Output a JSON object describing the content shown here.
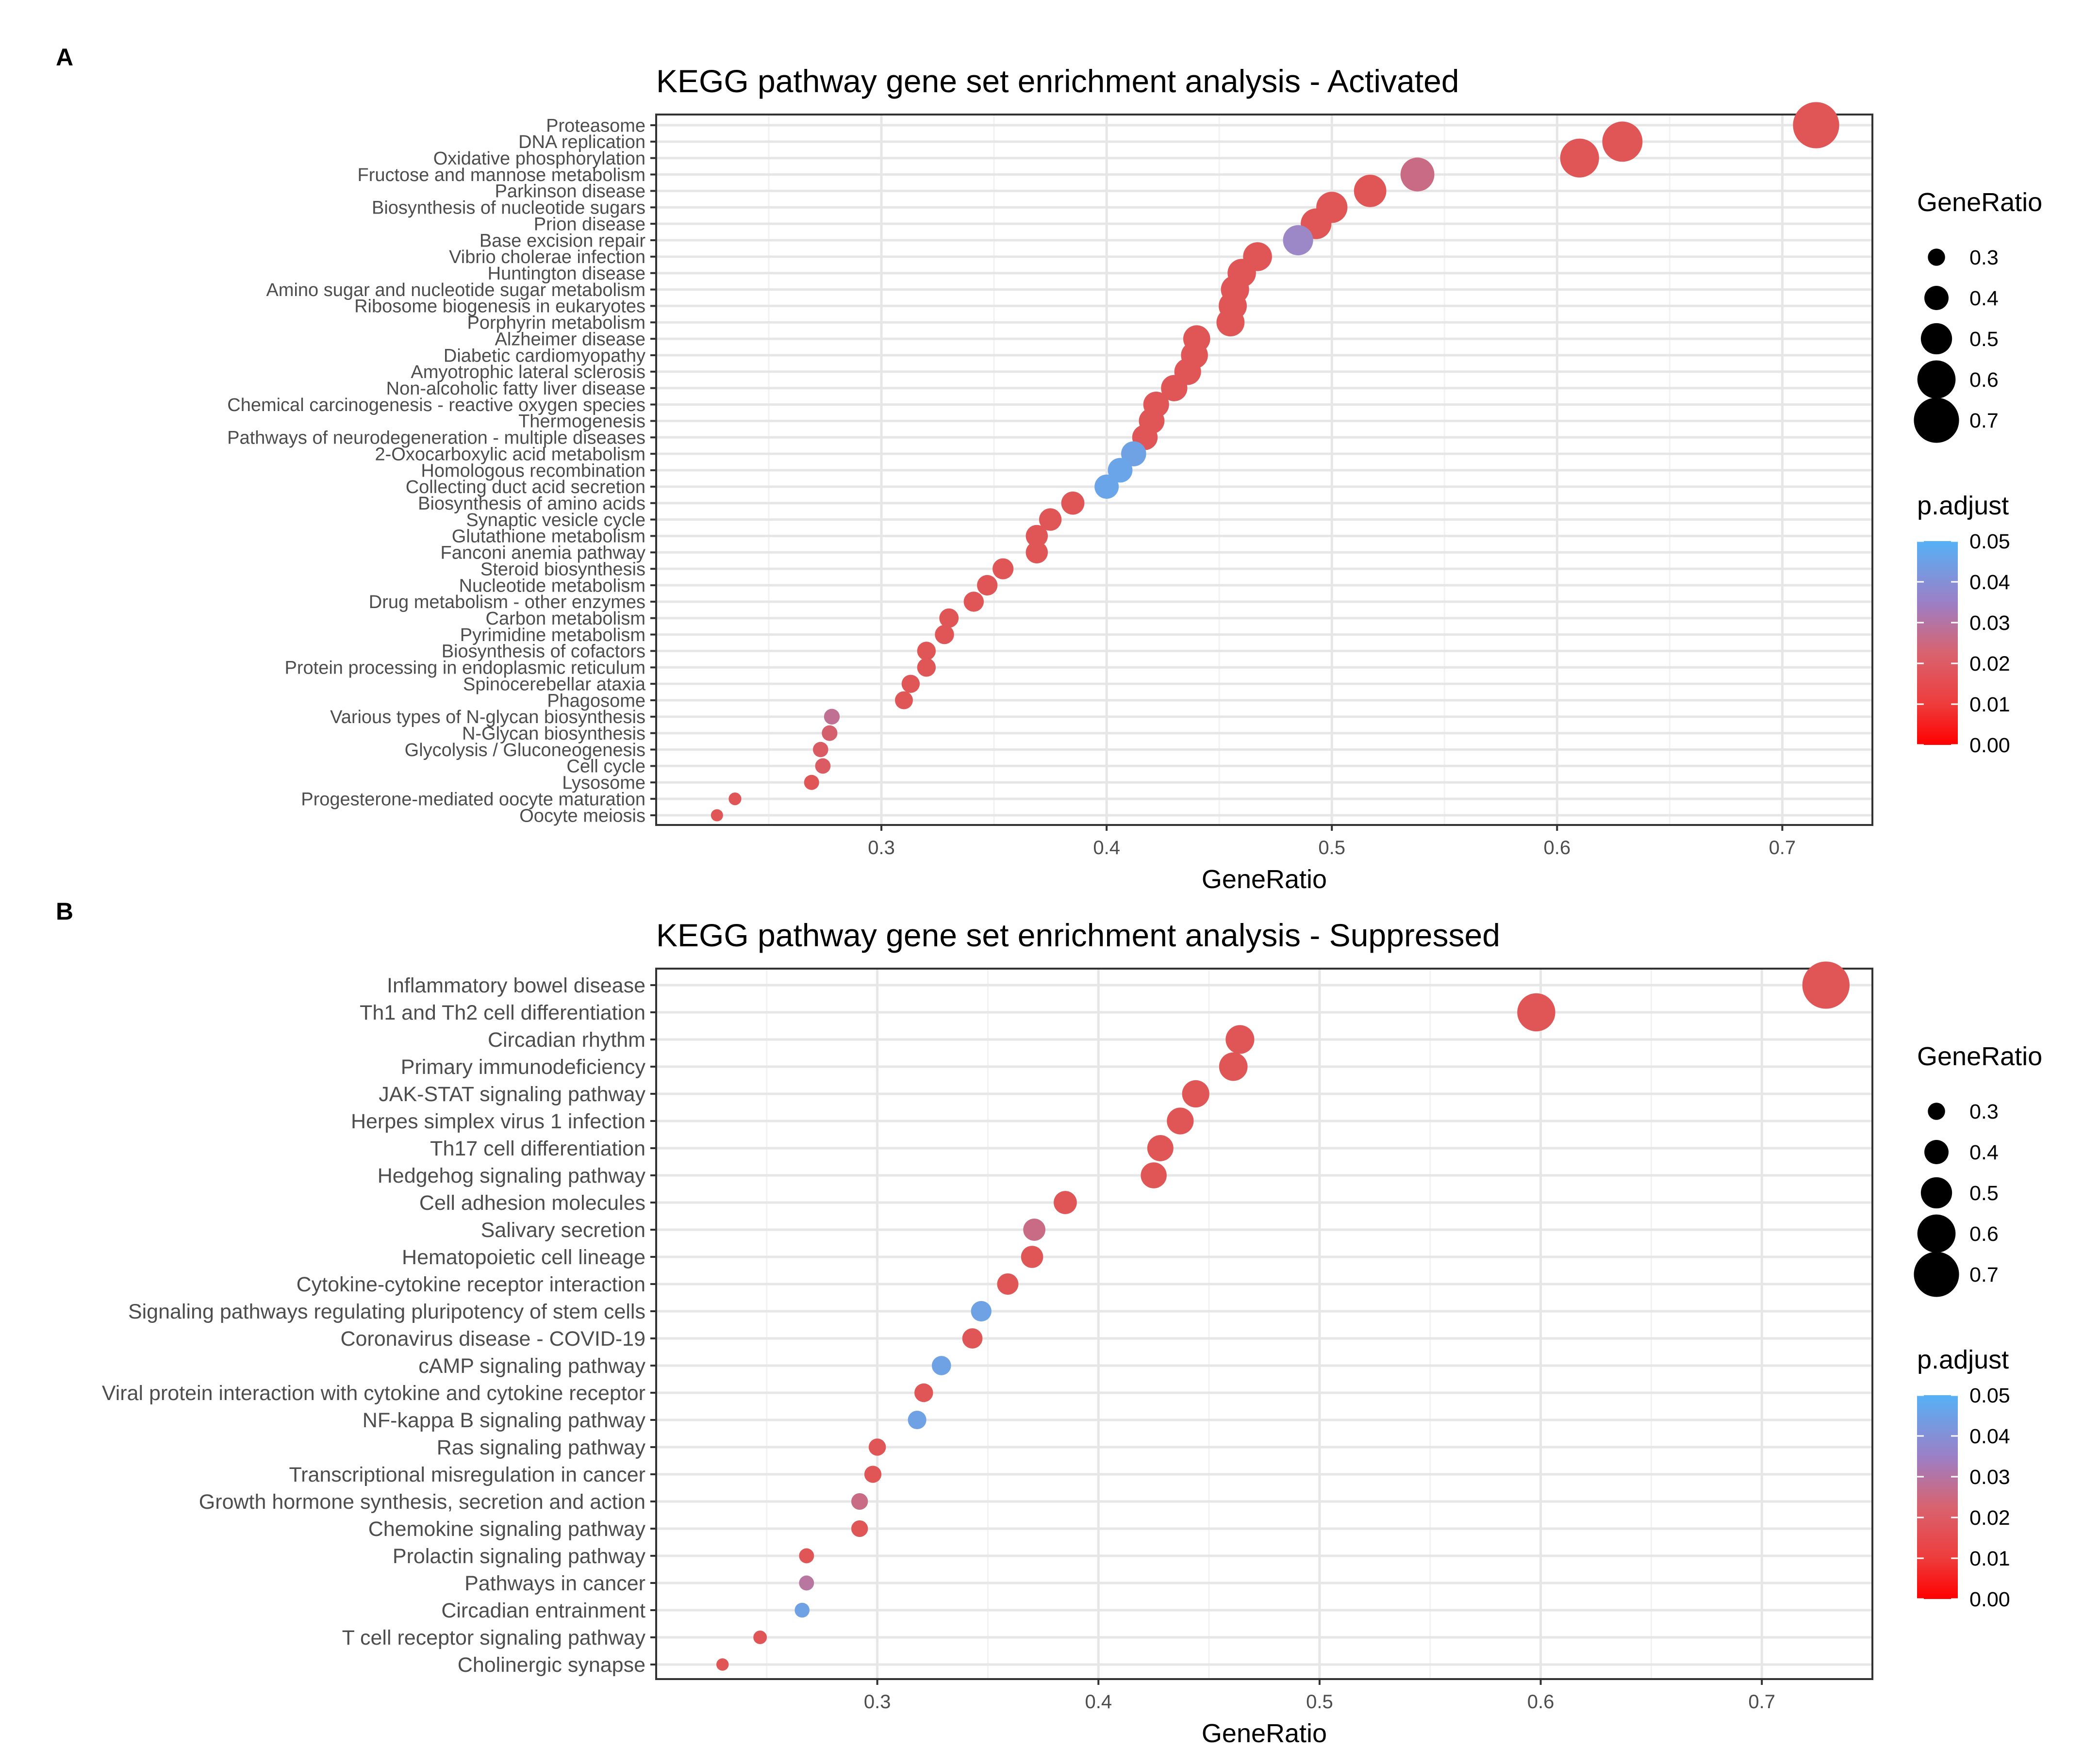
{
  "chart_data": [
    {
      "panel_label": "A",
      "type": "scatter",
      "title": "KEGG pathway gene set enrichment analysis - Activated",
      "xlabel": "GeneRatio",
      "ylabel": "",
      "xlim": [
        0.2,
        0.74
      ],
      "xticks": [
        0.3,
        0.4,
        0.5,
        0.6,
        0.7
      ],
      "grid": true,
      "categories": [
        "Proteasome",
        "DNA replication",
        "Oxidative phosphorylation",
        "Fructose and mannose metabolism",
        "Parkinson disease",
        "Biosynthesis of nucleotide sugars",
        "Prion disease",
        "Base excision repair",
        "Vibrio cholerae infection",
        "Huntington disease",
        "Amino sugar and nucleotide sugar metabolism",
        "Ribosome biogenesis in eukaryotes",
        "Porphyrin metabolism",
        "Alzheimer disease",
        "Diabetic cardiomyopathy",
        "Amyotrophic lateral sclerosis",
        "Non-alcoholic fatty liver disease",
        "Chemical carcinogenesis - reactive oxygen species",
        "Thermogenesis",
        "Pathways of neurodegeneration - multiple diseases",
        "2-Oxocarboxylic acid metabolism",
        "Homologous recombination",
        "Collecting duct acid secretion",
        "Biosynthesis of amino acids",
        "Synaptic vesicle cycle",
        "Glutathione metabolism",
        "Fanconi anemia pathway",
        "Steroid biosynthesis",
        "Nucleotide metabolism",
        "Drug metabolism - other enzymes",
        "Carbon metabolism",
        "Pyrimidine metabolism",
        "Biosynthesis of cofactors",
        "Protein processing in endoplasmic reticulum",
        "Spinocerebellar ataxia",
        "Phagosome",
        "Various types of N-glycan biosynthesis",
        "N-Glycan biosynthesis",
        "Glycolysis / Gluconeogenesis",
        "Cell cycle",
        "Lysosome",
        "Progesterone-mediated oocyte maturation",
        "Oocyte meiosis"
      ],
      "gene_ratio": [
        0.715,
        0.629,
        0.61,
        0.538,
        0.517,
        0.5,
        0.493,
        0.485,
        0.467,
        0.46,
        0.457,
        0.456,
        0.455,
        0.44,
        0.439,
        0.436,
        0.43,
        0.422,
        0.42,
        0.417,
        0.412,
        0.406,
        0.4,
        0.385,
        0.375,
        0.369,
        0.369,
        0.354,
        0.347,
        0.341,
        0.33,
        0.328,
        0.32,
        0.32,
        0.313,
        0.31,
        0.278,
        0.277,
        0.273,
        0.274,
        0.269,
        0.235,
        0.227
      ],
      "p_adjust": [
        0.018,
        0.018,
        0.018,
        0.026,
        0.018,
        0.018,
        0.018,
        0.036,
        0.018,
        0.018,
        0.018,
        0.018,
        0.018,
        0.018,
        0.018,
        0.018,
        0.018,
        0.018,
        0.018,
        0.018,
        0.045,
        0.046,
        0.046,
        0.018,
        0.018,
        0.018,
        0.018,
        0.018,
        0.018,
        0.018,
        0.018,
        0.018,
        0.018,
        0.018,
        0.018,
        0.018,
        0.028,
        0.022,
        0.02,
        0.02,
        0.018,
        0.018,
        0.018
      ],
      "legend": {
        "size_title": "GeneRatio",
        "size_values": [
          0.3,
          0.4,
          0.5,
          0.6,
          0.7
        ],
        "size_labels": [
          "0.3",
          "0.4",
          "0.5",
          "0.6",
          "0.7"
        ],
        "color_title": "p.adjust",
        "color_ticks": [
          0.05,
          0.04,
          0.03,
          0.02,
          0.01,
          0.0
        ],
        "color_labels": [
          "0.05",
          "0.04",
          "0.03",
          "0.02",
          "0.01",
          "0.00"
        ],
        "placement": "right"
      }
    },
    {
      "panel_label": "B",
      "type": "scatter",
      "title": "KEGG pathway gene set enrichment analysis - Suppressed",
      "xlabel": "GeneRatio",
      "ylabel": "",
      "xlim": [
        0.2,
        0.75
      ],
      "xticks": [
        0.3,
        0.4,
        0.5,
        0.6,
        0.7
      ],
      "grid": true,
      "categories": [
        "Inflammatory bowel disease",
        "Th1 and Th2 cell differentiation",
        "Circadian rhythm",
        "Primary immunodeficiency",
        "JAK-STAT signaling pathway",
        "Herpes simplex virus 1 infection",
        "Th17 cell differentiation",
        "Hedgehog signaling pathway",
        "Cell adhesion molecules",
        "Salivary secretion",
        "Hematopoietic cell lineage",
        "Cytokine-cytokine receptor interaction",
        "Signaling pathways regulating pluripotency of stem cells",
        "Coronavirus disease - COVID-19",
        "cAMP signaling pathway",
        "Viral protein interaction with cytokine and cytokine receptor",
        "NF-kappa B signaling pathway",
        "Ras signaling pathway",
        "Transcriptional misregulation in cancer",
        "Growth hormone synthesis, secretion and action",
        "Chemokine signaling pathway",
        "Prolactin signaling pathway",
        "Pathways in cancer",
        "Circadian entrainment",
        "T cell receptor signaling pathway",
        "Cholinergic synapse"
      ],
      "gene_ratio": [
        0.729,
        0.598,
        0.464,
        0.461,
        0.444,
        0.437,
        0.428,
        0.425,
        0.385,
        0.371,
        0.37,
        0.359,
        0.347,
        0.343,
        0.329,
        0.321,
        0.318,
        0.3,
        0.298,
        0.292,
        0.292,
        0.268,
        0.268,
        0.266,
        0.247,
        0.23
      ],
      "p_adjust": [
        0.018,
        0.018,
        0.018,
        0.018,
        0.018,
        0.018,
        0.018,
        0.018,
        0.018,
        0.026,
        0.018,
        0.018,
        0.045,
        0.018,
        0.045,
        0.018,
        0.045,
        0.018,
        0.018,
        0.026,
        0.018,
        0.018,
        0.03,
        0.045,
        0.018,
        0.018
      ],
      "legend": {
        "size_title": "GeneRatio",
        "size_values": [
          0.3,
          0.4,
          0.5,
          0.6,
          0.7
        ],
        "size_labels": [
          "0.3",
          "0.4",
          "0.5",
          "0.6",
          "0.7"
        ],
        "color_title": "p.adjust",
        "color_ticks": [
          0.05,
          0.04,
          0.03,
          0.02,
          0.01,
          0.0
        ],
        "color_labels": [
          "0.05",
          "0.04",
          "0.03",
          "0.02",
          "0.01",
          "0.00"
        ],
        "placement": "right"
      }
    }
  ],
  "colors": {
    "low_p": "#ff0000",
    "high_p": "#56b1f7",
    "grid": "#ebebeb",
    "frame": "#333333",
    "text": "#4d4d4d"
  }
}
